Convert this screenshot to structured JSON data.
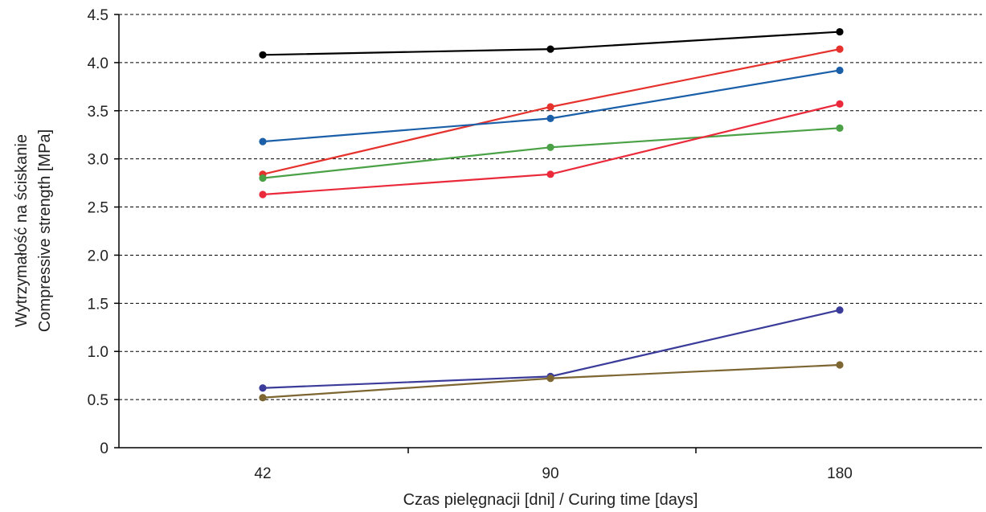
{
  "chart_data": {
    "type": "line",
    "categories": [
      "42",
      "90",
      "180"
    ],
    "xlabel": "Czas pielęgnacji [dni] / Curing time [days]",
    "ylabel_line1": "Wytrzymałość na ściskanie",
    "ylabel_line2": "Compressive strength [MPa]",
    "ylim": [
      0,
      4.5
    ],
    "yticks": [
      0,
      0.5,
      1.0,
      1.5,
      2.0,
      2.5,
      3.0,
      3.5,
      4.0,
      4.5
    ],
    "ytick_labels": [
      "0",
      "0.5",
      "1.0",
      "1.5",
      "2.0",
      "2.5",
      "3.0",
      "3.5",
      "4.0",
      "4.5"
    ],
    "grid": "horizontal dashed",
    "legend": "none",
    "series": [
      {
        "color": "#000000",
        "values": [
          4.08,
          4.14,
          4.32
        ]
      },
      {
        "color": "#e5322d",
        "values": [
          2.84,
          3.54,
          4.14
        ]
      },
      {
        "color": "#1a5fa8",
        "values": [
          3.18,
          3.42,
          3.92
        ]
      },
      {
        "color": "#4aa146",
        "values": [
          2.8,
          3.12,
          3.32
        ]
      },
      {
        "color": "#ea2a3a",
        "values": [
          2.63,
          2.84,
          3.57
        ]
      },
      {
        "color": "#3b3c9a",
        "values": [
          0.62,
          0.74,
          1.43
        ]
      },
      {
        "color": "#7d6632",
        "values": [
          0.52,
          0.72,
          0.86
        ]
      }
    ]
  }
}
